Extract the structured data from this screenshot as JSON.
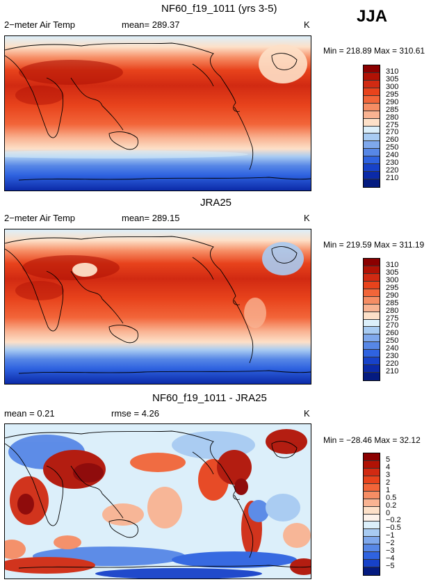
{
  "season": "JJA",
  "panels": [
    {
      "title": "NF60_f19_1011 (yrs 3-5)",
      "left_label": "2−meter Air Temp",
      "mean_text": "mean= 289.37",
      "unit": "K",
      "minmax": "Min = 218.89 Max = 310.61",
      "legend_labels": [
        "310",
        "305",
        "300",
        "295",
        "290",
        "285",
        "280",
        "275",
        "270",
        "260",
        "250",
        "240",
        "230",
        "220",
        "210"
      ],
      "legend_colors": [
        "#8b0000",
        "#b11205",
        "#d12a12",
        "#e8431c",
        "#f26539",
        "#f68d64",
        "#f9b392",
        "#fde0c8",
        "#dceffa",
        "#a8cbf2",
        "#7fa8ec",
        "#5787e6",
        "#2f63e0",
        "#1742c9",
        "#0b2aa8",
        "#041b80"
      ]
    },
    {
      "title": "JRA25",
      "left_label": "2−meter Air Temp",
      "mean_text": "mean= 289.15",
      "unit": "K",
      "minmax": "Min = 219.59 Max = 311.19",
      "legend_labels": [
        "310",
        "305",
        "300",
        "295",
        "290",
        "285",
        "280",
        "275",
        "270",
        "260",
        "250",
        "240",
        "230",
        "220",
        "210"
      ],
      "legend_colors": [
        "#8b0000",
        "#b11205",
        "#d12a12",
        "#e8431c",
        "#f26539",
        "#f68d64",
        "#f9b392",
        "#fde0c8",
        "#dceffa",
        "#a8cbf2",
        "#7fa8ec",
        "#5787e6",
        "#2f63e0",
        "#1742c9",
        "#0b2aa8",
        "#041b80"
      ]
    },
    {
      "title": "NF60_f19_1011 - JRA25",
      "left_label": "mean =   0.21",
      "mean_text": "rmse =   4.26",
      "unit": "K",
      "minmax": "Min = −28.46 Max =  32.12",
      "legend_labels": [
        "5",
        "4",
        "3",
        "2",
        "1",
        "0.5",
        "0.2",
        "0",
        "−0.2",
        "−0.5",
        "−1",
        "−2",
        "−3",
        "−4",
        "−5"
      ],
      "legend_colors": [
        "#8b0000",
        "#b11205",
        "#d12a12",
        "#e8431c",
        "#f26539",
        "#f68d64",
        "#f9b392",
        "#fde0c8",
        "#fdf2ea",
        "#dceffa",
        "#a8cbf2",
        "#7fa8ec",
        "#5787e6",
        "#2f63e0",
        "#1742c9",
        "#041b80"
      ]
    }
  ],
  "colors": {
    "warm_dark": "#8b0000",
    "warm_mid": "#e8431c",
    "neutral_light": "#fde0c8",
    "cool_mid": "#5787e6",
    "cool_dark": "#041b80",
    "coastline": "#000000"
  }
}
